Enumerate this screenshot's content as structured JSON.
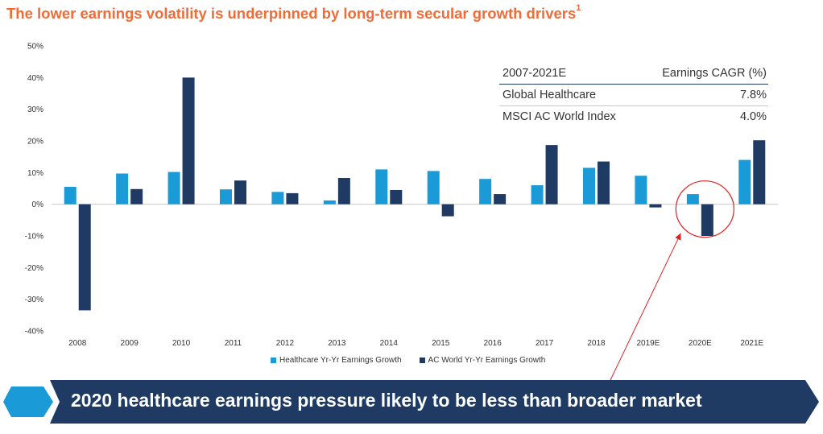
{
  "title": "The lower earnings volatility is underpinned by long-term secular growth drivers",
  "title_footnote": "1",
  "colors": {
    "title": "#f26b36",
    "healthcare": "#1a9ad6",
    "world": "#1f3b64",
    "annotation": "#e02020",
    "banner": "#1f3b64",
    "banner_icon": "#1a9ad6"
  },
  "cagr_table": {
    "header": {
      "period": "2007-2021E",
      "metric": "Earnings CAGR (%)"
    },
    "rows": [
      {
        "name": "Global Healthcare",
        "value": "7.8%"
      },
      {
        "name": "MSCI AC World Index",
        "value": "4.0%"
      }
    ]
  },
  "legend": {
    "healthcare": "Healthcare Yr-Yr Earnings Growth",
    "world": "AC World Yr-Yr Earnings Growth"
  },
  "banner": {
    "text": "2020 healthcare earnings pressure likely to be less than broader market"
  },
  "chart_data": {
    "type": "bar",
    "categories": [
      "2008",
      "2009",
      "2010",
      "2011",
      "2012",
      "2013",
      "2014",
      "2015",
      "2016",
      "2017",
      "2018",
      "2019E",
      "2020E",
      "2021E"
    ],
    "series": [
      {
        "name": "Healthcare Yr-Yr Earnings Growth",
        "values": [
          5.5,
          9.7,
          10.2,
          4.7,
          3.9,
          1.2,
          11.0,
          10.5,
          8.0,
          6.0,
          11.5,
          9.0,
          3.2,
          14.0
        ]
      },
      {
        "name": "AC World Yr-Yr Earnings Growth",
        "values": [
          -33.5,
          4.8,
          40.0,
          7.5,
          3.5,
          8.3,
          4.5,
          -3.8,
          3.2,
          18.7,
          13.5,
          -1.0,
          -10.0,
          20.2
        ]
      }
    ],
    "yticks": [
      "50%",
      "40%",
      "30%",
      "20%",
      "10%",
      "0%",
      "-10%",
      "-20%",
      "-30%",
      "-40%"
    ],
    "ylim": [
      -40,
      50
    ],
    "grid": false,
    "legend_position": "bottom",
    "highlight": {
      "category": "2020E",
      "style": "red-circle-with-arrow"
    }
  }
}
